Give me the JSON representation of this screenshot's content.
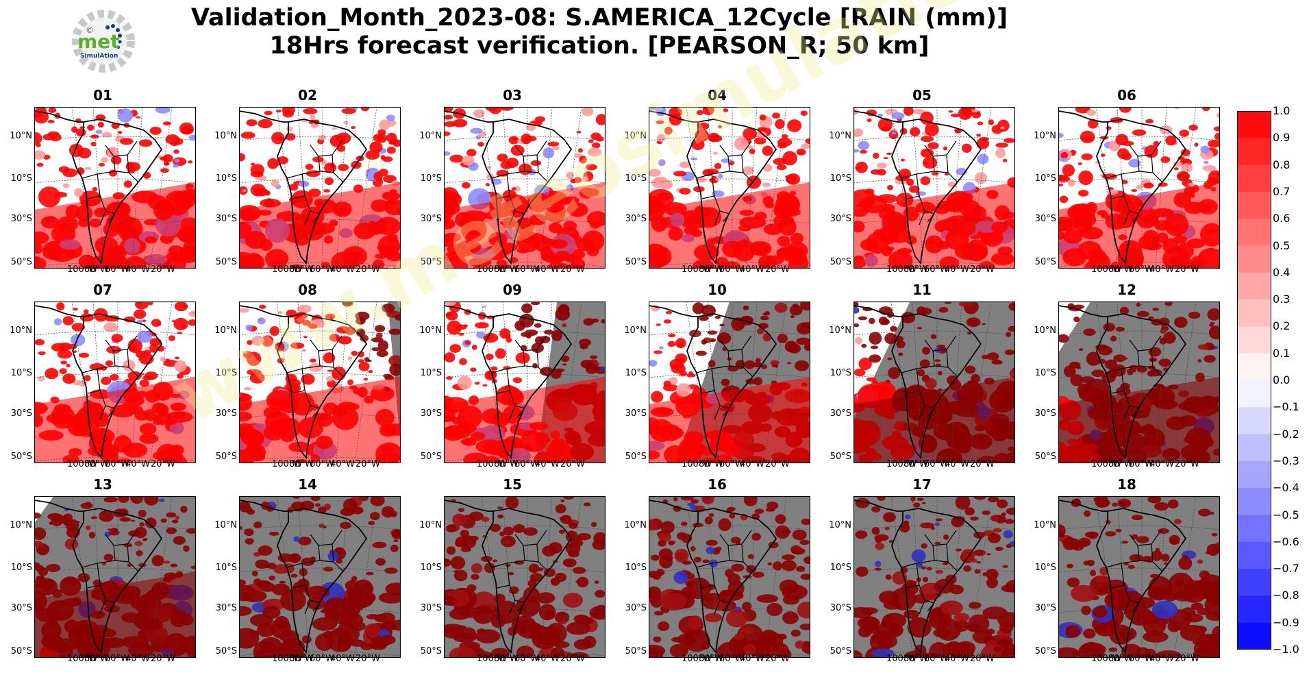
{
  "title": {
    "line1": "Validation_Month_2023-08: S.AMERICA_12Cycle [RAIN (mm)]",
    "line2": "18Hrs forecast verification.  [PEARSON_R; 50 km]"
  },
  "logo": {
    "text": "met",
    "subtext": "SimulAtion",
    "mark": "©"
  },
  "watermark": {
    "text": "www.meteosimulation.com"
  },
  "chart_data": {
    "type": "heatmap",
    "metric": "PEARSON_R",
    "variable": "RAIN (mm)",
    "panels": [
      {
        "label": "01",
        "masked_fraction": 0.0
      },
      {
        "label": "02",
        "masked_fraction": 0.0
      },
      {
        "label": "03",
        "masked_fraction": 0.0
      },
      {
        "label": "04",
        "masked_fraction": 0.0
      },
      {
        "label": "05",
        "masked_fraction": 0.0
      },
      {
        "label": "06",
        "masked_fraction": 0.0
      },
      {
        "label": "07",
        "masked_fraction": 0.0
      },
      {
        "label": "08",
        "masked_fraction": 0.08
      },
      {
        "label": "09",
        "masked_fraction": 0.3
      },
      {
        "label": "10",
        "masked_fraction": 0.5
      },
      {
        "label": "11",
        "masked_fraction": 0.65
      },
      {
        "label": "12",
        "masked_fraction": 0.8
      },
      {
        "label": "13",
        "masked_fraction": 0.88
      },
      {
        "label": "14",
        "masked_fraction": 1.0
      },
      {
        "label": "15",
        "masked_fraction": 1.0
      },
      {
        "label": "16",
        "masked_fraction": 1.0
      },
      {
        "label": "17",
        "masked_fraction": 1.0
      },
      {
        "label": "18",
        "masked_fraction": 1.0
      }
    ],
    "lat_ticks": [
      "10°N",
      "10°S",
      "30°S",
      "50°S"
    ],
    "lon_ticks": [
      "100°W",
      "80°W",
      "60°W",
      "40°W",
      "20°W"
    ],
    "colorbar": {
      "min": -1.0,
      "max": 1.0,
      "step": 0.1,
      "colors": {
        "positive": "#ff0000",
        "negative": "#0000ff",
        "neutral": "#ffffff",
        "masked": "#808080",
        "masked_data": "#8b0000"
      },
      "tick_labels": [
        "1.0",
        "0.9",
        "0.8",
        "0.7",
        "0.6",
        "0.5",
        "0.4",
        "0.3",
        "0.2",
        "0.1",
        "0.0",
        "−0.1",
        "−0.2",
        "−0.3",
        "−0.4",
        "−0.5",
        "−0.6",
        "−0.7",
        "−0.8",
        "−0.9",
        "−1.0"
      ]
    }
  }
}
